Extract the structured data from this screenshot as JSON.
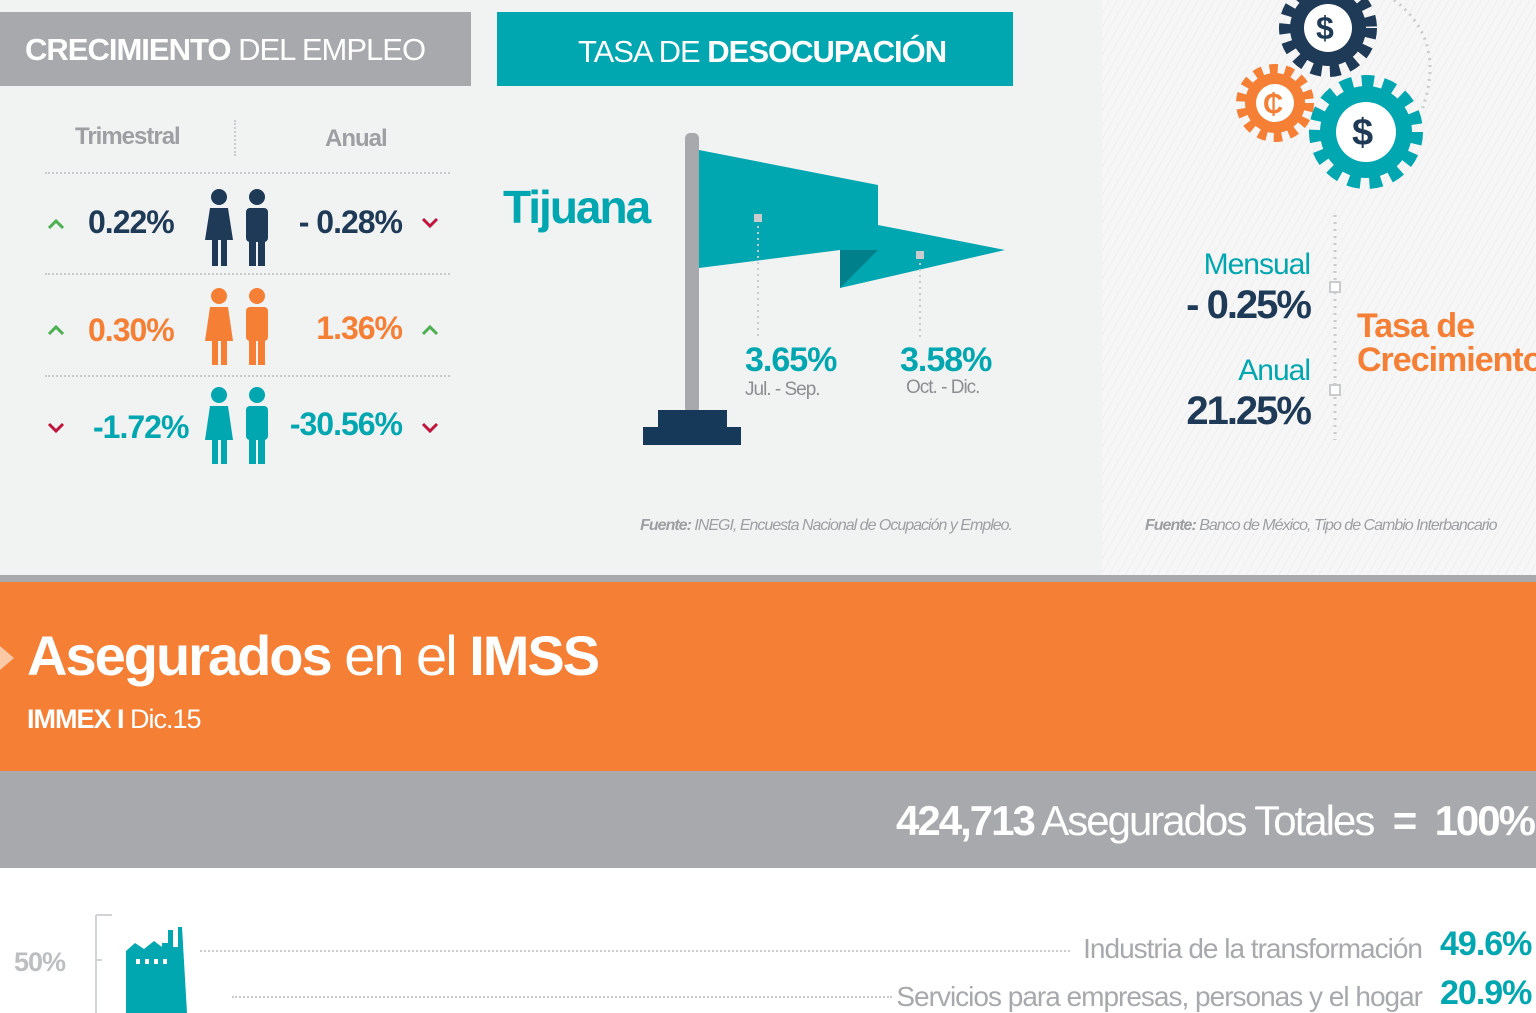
{
  "empleo": {
    "title_bold": "CRECIMIENTO",
    "title_rest": "DEL EMPLEO",
    "headers": [
      "Trimestral",
      "Anual"
    ],
    "rows": [
      {
        "trimestral": "0.22%",
        "anual": "- 0.28%"
      },
      {
        "trimestral": "0.30%",
        "anual": "1.36%"
      },
      {
        "trimestral": "-1.72%",
        "anual": "-30.56%"
      }
    ]
  },
  "desocupacion": {
    "title_normal": "TASA DE",
    "title_bold": "DESOCUPACIÓN",
    "city": "Tijuana",
    "points": [
      {
        "value": "3.65%",
        "period": "Jul. - Sep."
      },
      {
        "value": "3.58%",
        "period": "Oct. - Dic."
      }
    ],
    "source_label": "Fuente:",
    "source": "INEGI, Encuesta Nacional de Ocupación y Empleo."
  },
  "tipo_cambio": {
    "gears": [
      "$",
      "₵",
      "$"
    ],
    "mensual_label": "Mensual",
    "mensual_value": "- 0.25%",
    "anual_label": "Anual",
    "anual_value": "21.25%",
    "title_line1": "Tasa de",
    "title_line2": "Crecimiento",
    "source_label": "Fuente:",
    "source": "Banco de México, Tipo de Cambio Interbancario"
  },
  "imss": {
    "title_bold": "Asegurados",
    "title_normal": "en el",
    "title_bold2": "IMSS",
    "subtitle_bold": "IMMEX I",
    "subtitle": "Dic.15",
    "total_value": "424,713",
    "total_label": "Asegurados Totales",
    "equals": "=",
    "total_pct": "100%"
  },
  "sectores": {
    "axis_label": "50%",
    "items": [
      {
        "name": "Industria de la transformación",
        "pct": "49.6%"
      },
      {
        "name": "Servicios para empresas, personas y el hogar",
        "pct": "20.9%"
      }
    ]
  }
}
